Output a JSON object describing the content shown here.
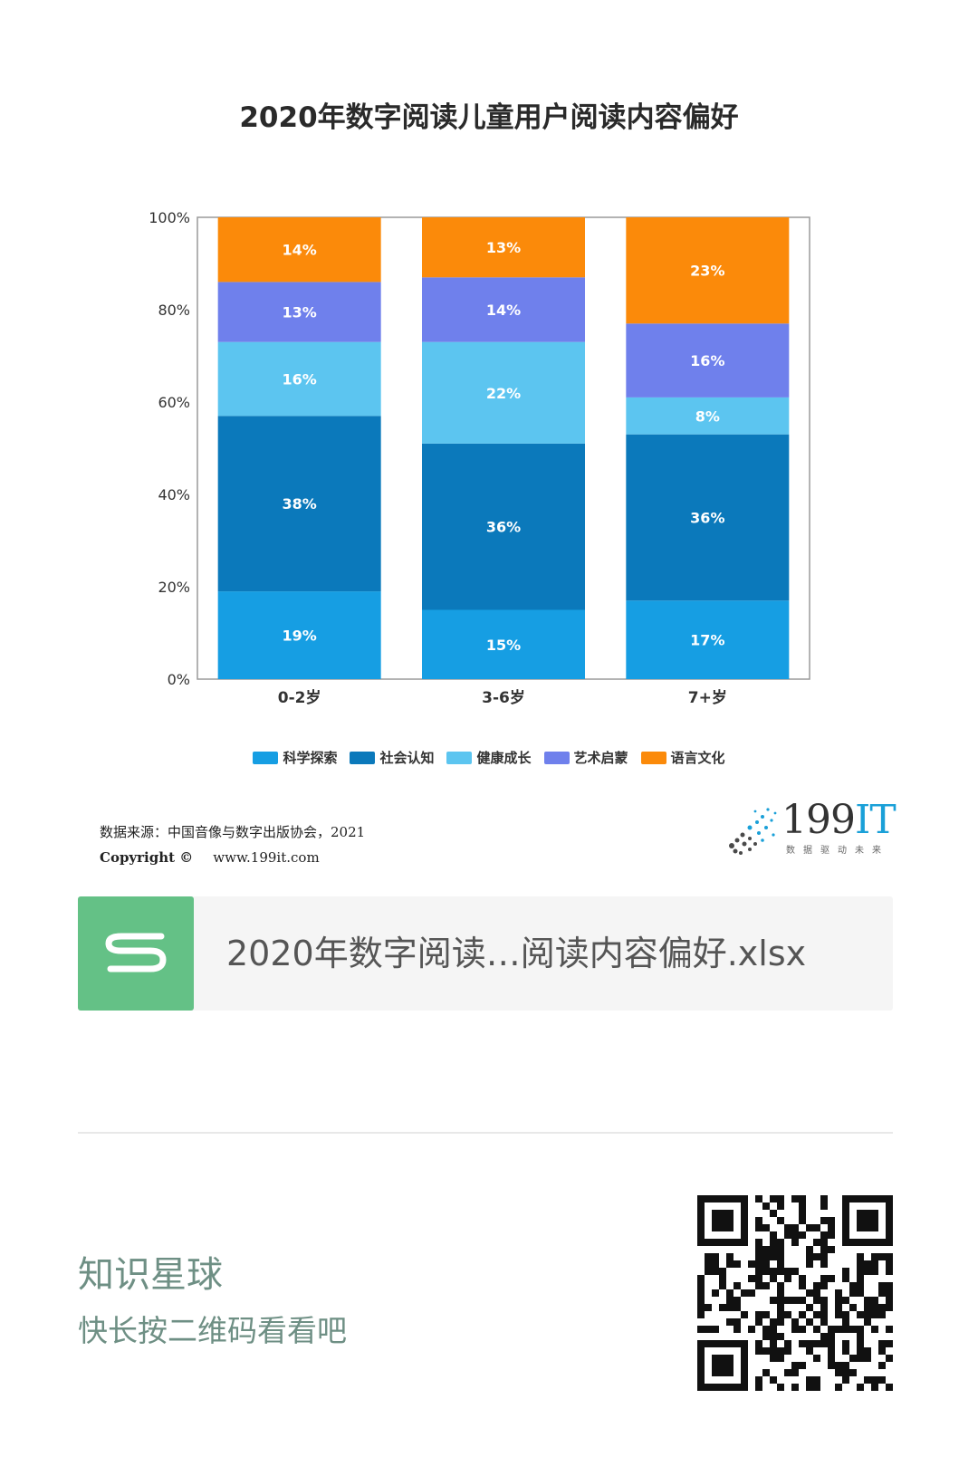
{
  "page": {
    "file_name": "2020年数字阅读…阅读内容偏好.xlsx",
    "source_line": "数据来源：中国音像与数字出版协会，2021",
    "copyright_label": "Copyright ©",
    "website": "www.199it.com",
    "logo_text_main": "199",
    "logo_text_it": "IT",
    "logo_tagline": "数据驱动未来",
    "planet_title": "知识星球",
    "planet_subtitle": "快长按二维码看看吧"
  },
  "icons": {
    "file": "spreadsheet-s-icon",
    "logo": "199it-logo",
    "qr": "qr-code"
  },
  "chart_data": {
    "type": "bar",
    "stacked": true,
    "title": "2020年数字阅读儿童用户阅读内容偏好",
    "categories": [
      "0-2岁",
      "3-6岁",
      "7+岁"
    ],
    "ylim": [
      0,
      100
    ],
    "yticks": [
      "0%",
      "20%",
      "40%",
      "60%",
      "80%",
      "100%"
    ],
    "grid": false,
    "legend_position": "bottom",
    "series": [
      {
        "name": "科学探索",
        "color": "#169ee3",
        "values": [
          19,
          15,
          17
        ],
        "labels": [
          "19%",
          "15%",
          "17%"
        ]
      },
      {
        "name": "社会认知",
        "color": "#0b79bb",
        "values": [
          38,
          36,
          36
        ],
        "labels": [
          "38%",
          "36%",
          "36%"
        ]
      },
      {
        "name": "健康成长",
        "color": "#5cc5f0",
        "values": [
          16,
          22,
          8
        ],
        "labels": [
          "16%",
          "22%",
          "8%"
        ]
      },
      {
        "name": "艺术启蒙",
        "color": "#6f80ec",
        "values": [
          13,
          14,
          16
        ],
        "labels": [
          "13%",
          "14%",
          "16%"
        ]
      },
      {
        "name": "语言文化",
        "color": "#fb8a0a",
        "values": [
          14,
          13,
          23
        ],
        "labels": [
          "14%",
          "13%",
          "23%"
        ]
      }
    ]
  }
}
